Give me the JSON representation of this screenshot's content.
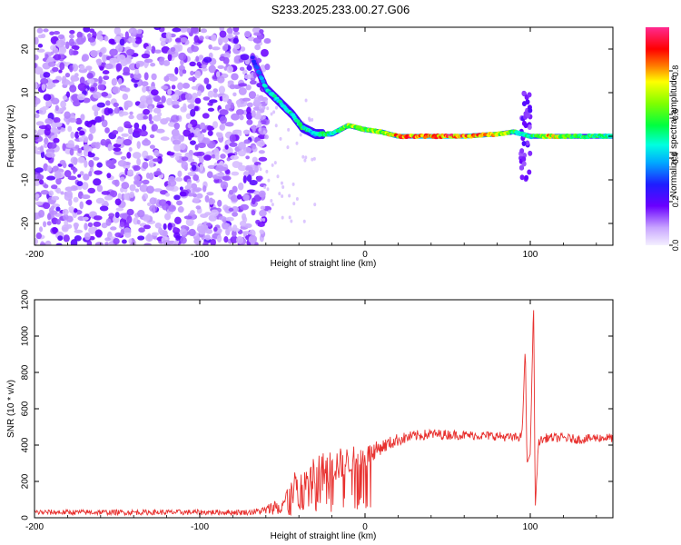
{
  "title": "S233.2025.233.00.27.G06",
  "chart_data": [
    {
      "type": "heatmap",
      "xlabel": "Height of straight line (km)",
      "ylabel": "Frequency (Hz)",
      "xlim": [
        -200,
        150
      ],
      "ylim": [
        -25,
        25
      ],
      "xticks": [
        -200,
        -100,
        0,
        100
      ],
      "xtick_labels": [
        "-200",
        "-100",
        "0",
        "100"
      ],
      "yticks": [
        -20,
        -10,
        0,
        10,
        20
      ],
      "ytick_labels": [
        "-20",
        "-10",
        "0",
        "10",
        "20"
      ],
      "colorbar": {
        "label": "Normalized spectral amplitude",
        "range": [
          0,
          1
        ],
        "ticks": [
          0,
          0.2,
          0.4,
          0.6,
          0.8
        ],
        "tick_labels": [
          "0.0",
          "0.2",
          "0.4",
          "0.6",
          "0.8"
        ]
      },
      "noise_region_x": [
        -200,
        -65
      ],
      "trace_points": [
        {
          "x": -68,
          "y": 18,
          "amp": 0.3
        },
        {
          "x": -60,
          "y": 11,
          "amp": 0.45
        },
        {
          "x": -52,
          "y": 8,
          "amp": 0.5
        },
        {
          "x": -44,
          "y": 5,
          "amp": 0.5
        },
        {
          "x": -38,
          "y": 2,
          "amp": 0.55
        },
        {
          "x": -30,
          "y": 0.5,
          "amp": 0.5
        },
        {
          "x": -20,
          "y": 0.5,
          "amp": 0.55
        },
        {
          "x": -10,
          "y": 2.5,
          "amp": 0.7
        },
        {
          "x": 0,
          "y": 1.5,
          "amp": 0.65
        },
        {
          "x": 10,
          "y": 1,
          "amp": 0.7
        },
        {
          "x": 20,
          "y": 0,
          "amp": 0.85
        },
        {
          "x": 40,
          "y": 0,
          "amp": 0.9
        },
        {
          "x": 60,
          "y": 0,
          "amp": 0.9
        },
        {
          "x": 80,
          "y": 0.5,
          "amp": 0.8
        },
        {
          "x": 90,
          "y": 1,
          "amp": 0.6
        },
        {
          "x": 100,
          "y": 0,
          "amp": 0.5
        },
        {
          "x": 110,
          "y": 0,
          "amp": 0.8
        },
        {
          "x": 130,
          "y": 0,
          "amp": 0.6
        },
        {
          "x": 150,
          "y": 0,
          "amp": 0.5
        }
      ],
      "annotation": "vertical spread near x = 95 to 100 km, frequency -10 to 10 Hz"
    },
    {
      "type": "line",
      "xlabel": "Height of straight line (km)",
      "ylabel": "SNR (10 * v/v)",
      "xlim": [
        -200,
        150
      ],
      "ylim": [
        0,
        1200
      ],
      "xticks": [
        -200,
        -100,
        0,
        100
      ],
      "xtick_labels": [
        "-200",
        "-100",
        "0",
        "100"
      ],
      "yticks": [
        0,
        200,
        400,
        600,
        800,
        1000,
        1200
      ],
      "ytick_labels": [
        "0",
        "200",
        "400",
        "600",
        "800",
        "1000",
        "1200"
      ],
      "series": [
        {
          "name": "SNR",
          "color": "#e8302e",
          "envelope": {
            "x": [
              -200,
              -150,
              -100,
              -70,
              -60,
              -50,
              -40,
              -30,
              -20,
              -10,
              0,
              10,
              20,
              30,
              40,
              60,
              80,
              90,
              95,
              97,
              98,
              100,
              102,
              103,
              105,
              110,
              120,
              130,
              140,
              150
            ],
            "y": [
              30,
              30,
              30,
              30,
              40,
              80,
              180,
              230,
              280,
              310,
              340,
              390,
              430,
              450,
              460,
              455,
              450,
              440,
              450,
              950,
              300,
              350,
              1200,
              50,
              420,
              440,
              440,
              430,
              440,
              440
            ],
            "noise": [
              15,
              15,
              15,
              15,
              25,
              60,
              110,
              120,
              100,
              80,
              60,
              40,
              35,
              30,
              30,
              25,
              25,
              25,
              25,
              0,
              0,
              0,
              0,
              0,
              25,
              25,
              25,
              25,
              25,
              25
            ]
          }
        }
      ]
    }
  ]
}
